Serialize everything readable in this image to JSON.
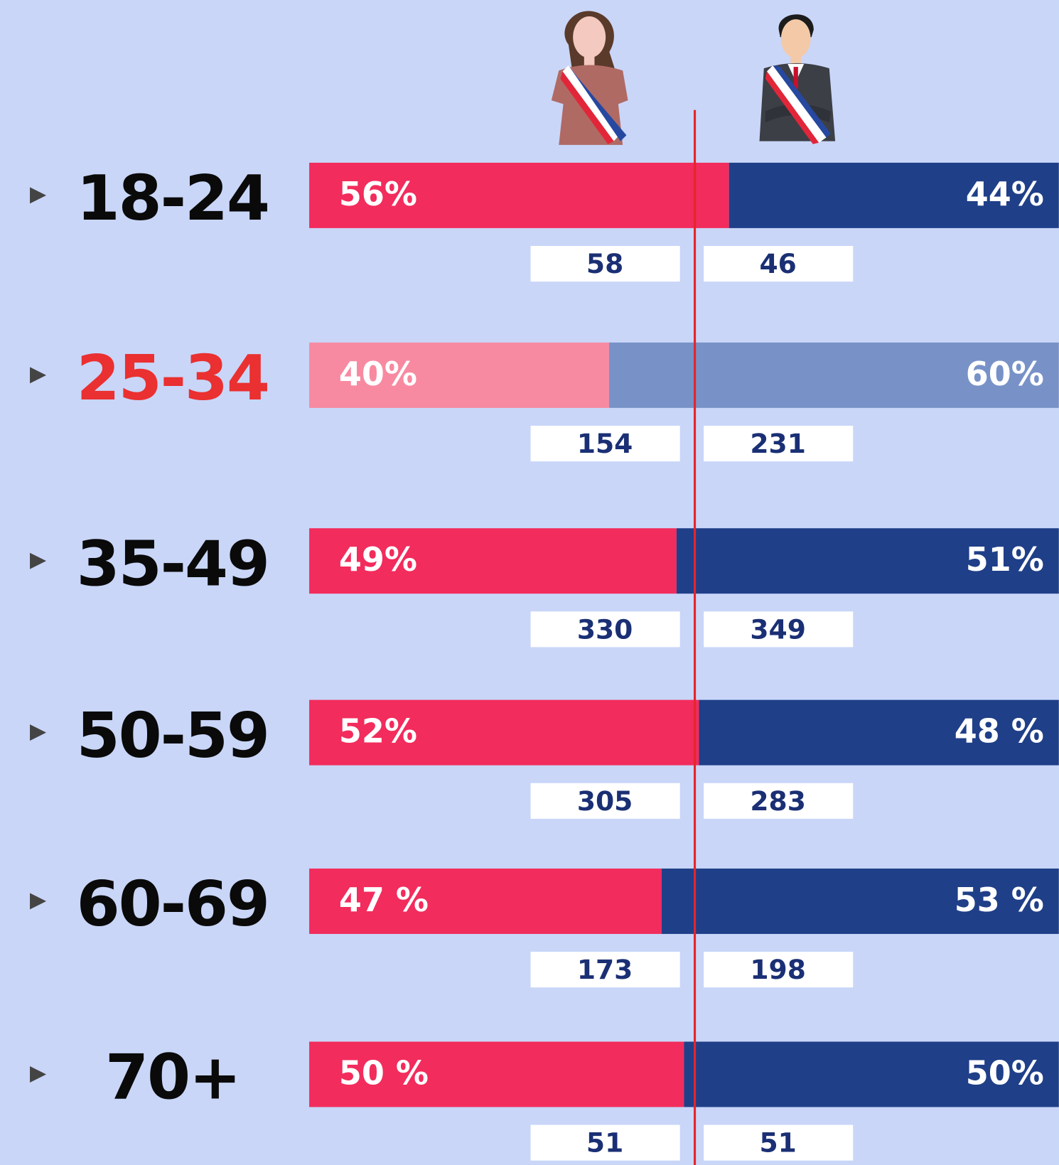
{
  "chart_data": {
    "type": "stacked_bar_100",
    "categories": [
      "18-24",
      "25-34",
      "35-49",
      "50-59",
      "60-69",
      "70+"
    ],
    "series": [
      {
        "color": "#f22c5c",
        "highlight_color": "#f78aa1",
        "values": [
          56,
          40,
          49,
          52,
          47,
          50
        ],
        "value_labels": [
          "56%",
          "40%",
          "49%",
          "52%",
          "47 %",
          "50 %"
        ],
        "counts": [
          58,
          154,
          330,
          305,
          173,
          51
        ]
      },
      {
        "color": "#1f3f88",
        "highlight_color": "#7892c8",
        "values": [
          44,
          60,
          51,
          48,
          53,
          50
        ],
        "value_labels": [
          "44%",
          "60%",
          "51%",
          "48 %",
          "53 %",
          "50%"
        ],
        "counts": [
          46,
          231,
          349,
          283,
          198,
          51
        ]
      }
    ],
    "highlight": {
      "index": 1,
      "label_color": "#ea3030"
    },
    "xlim": [
      0,
      100
    ]
  }
}
